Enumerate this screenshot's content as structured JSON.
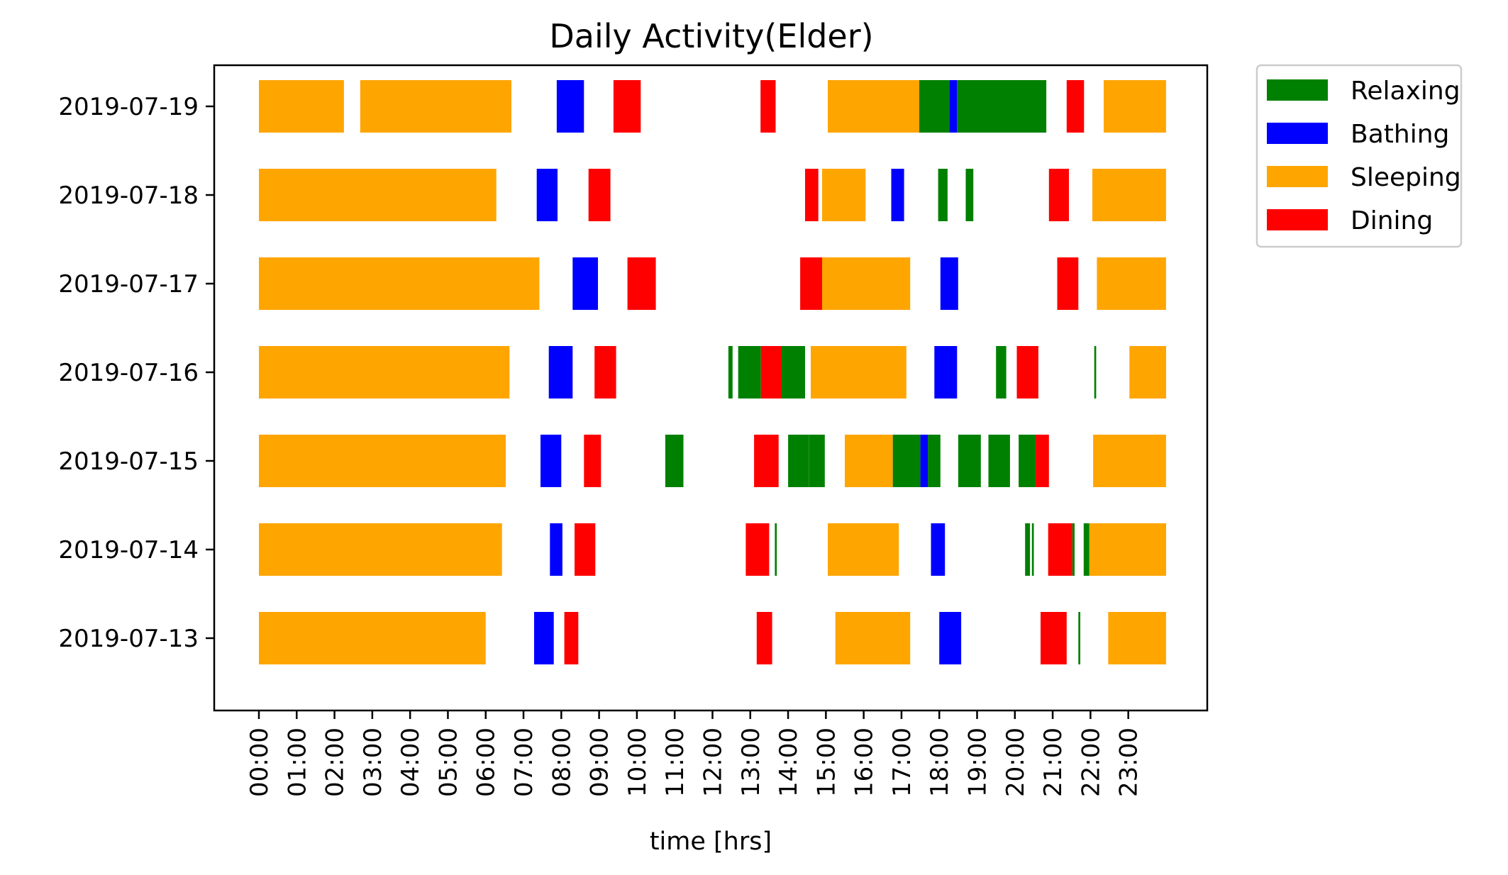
{
  "chart_data": {
    "type": "bar",
    "orientation": "horizontal-timeline",
    "title": "Daily Activity(Elder)",
    "xlabel": "time [hrs]",
    "ylabel": "",
    "xlim": [
      -1.2,
      25.0
    ],
    "x_ticks": [
      "00:00",
      "01:00",
      "02:00",
      "03:00",
      "04:00",
      "05:00",
      "06:00",
      "07:00",
      "08:00",
      "09:00",
      "10:00",
      "11:00",
      "12:00",
      "13:00",
      "14:00",
      "15:00",
      "16:00",
      "17:00",
      "18:00",
      "19:00",
      "20:00",
      "21:00",
      "22:00",
      "23:00"
    ],
    "categories": [
      "2019-07-19",
      "2019-07-18",
      "2019-07-17",
      "2019-07-16",
      "2019-07-15",
      "2019-07-14",
      "2019-07-13"
    ],
    "grid": false,
    "legend_position": "outside-top-right",
    "series": [
      {
        "name": "Relaxing",
        "color": "#008000"
      },
      {
        "name": "Bathing",
        "color": "#0000ff"
      },
      {
        "name": "Sleeping",
        "color": "#ffa500"
      },
      {
        "name": "Dining",
        "color": "#ff0000"
      }
    ],
    "rows": [
      {
        "date": "2019-07-19",
        "segments": [
          {
            "activity": "Sleeping",
            "start": 0.0,
            "end": 2.25
          },
          {
            "activity": "Sleeping",
            "start": 2.68,
            "end": 6.68
          },
          {
            "activity": "Bathing",
            "start": 7.88,
            "end": 8.6
          },
          {
            "activity": "Dining",
            "start": 9.38,
            "end": 10.1
          },
          {
            "activity": "Dining",
            "start": 13.27,
            "end": 13.67
          },
          {
            "activity": "Sleeping",
            "start": 15.05,
            "end": 17.47
          },
          {
            "activity": "Relaxing",
            "start": 17.47,
            "end": 18.27
          },
          {
            "activity": "Bathing",
            "start": 18.27,
            "end": 18.47
          },
          {
            "activity": "Relaxing",
            "start": 18.47,
            "end": 20.83
          },
          {
            "activity": "Dining",
            "start": 21.37,
            "end": 21.83
          },
          {
            "activity": "Sleeping",
            "start": 22.35,
            "end": 24.0
          }
        ]
      },
      {
        "date": "2019-07-18",
        "segments": [
          {
            "activity": "Sleeping",
            "start": 0.0,
            "end": 6.28
          },
          {
            "activity": "Bathing",
            "start": 7.35,
            "end": 7.9
          },
          {
            "activity": "Dining",
            "start": 8.72,
            "end": 9.3
          },
          {
            "activity": "Dining",
            "start": 14.45,
            "end": 14.8
          },
          {
            "activity": "Sleeping",
            "start": 14.9,
            "end": 16.05
          },
          {
            "activity": "Bathing",
            "start": 16.73,
            "end": 17.07
          },
          {
            "activity": "Relaxing",
            "start": 17.97,
            "end": 18.22
          },
          {
            "activity": "Relaxing",
            "start": 18.7,
            "end": 18.9
          },
          {
            "activity": "Dining",
            "start": 20.9,
            "end": 21.43
          },
          {
            "activity": "Sleeping",
            "start": 22.05,
            "end": 24.0
          }
        ]
      },
      {
        "date": "2019-07-17",
        "segments": [
          {
            "activity": "Sleeping",
            "start": 0.0,
            "end": 7.42
          },
          {
            "activity": "Bathing",
            "start": 8.3,
            "end": 8.97
          },
          {
            "activity": "Dining",
            "start": 9.75,
            "end": 10.5
          },
          {
            "activity": "Dining",
            "start": 14.32,
            "end": 14.9
          },
          {
            "activity": "Sleeping",
            "start": 14.9,
            "end": 17.23
          },
          {
            "activity": "Bathing",
            "start": 18.03,
            "end": 18.5
          },
          {
            "activity": "Dining",
            "start": 21.12,
            "end": 21.68
          },
          {
            "activity": "Sleeping",
            "start": 22.17,
            "end": 24.0
          }
        ]
      },
      {
        "date": "2019-07-16",
        "segments": [
          {
            "activity": "Sleeping",
            "start": 0.0,
            "end": 6.63
          },
          {
            "activity": "Bathing",
            "start": 7.67,
            "end": 8.3
          },
          {
            "activity": "Dining",
            "start": 8.88,
            "end": 9.45
          },
          {
            "activity": "Relaxing",
            "start": 12.42,
            "end": 12.53
          },
          {
            "activity": "Relaxing",
            "start": 12.68,
            "end": 13.28
          },
          {
            "activity": "Dining",
            "start": 13.28,
            "end": 13.83
          },
          {
            "activity": "Relaxing",
            "start": 13.83,
            "end": 14.45
          },
          {
            "activity": "Sleeping",
            "start": 14.6,
            "end": 17.13
          },
          {
            "activity": "Bathing",
            "start": 17.87,
            "end": 18.47
          },
          {
            "activity": "Relaxing",
            "start": 19.5,
            "end": 19.77
          },
          {
            "activity": "Dining",
            "start": 20.05,
            "end": 20.62
          },
          {
            "activity": "Relaxing",
            "start": 22.1,
            "end": 22.15
          },
          {
            "activity": "Sleeping",
            "start": 23.03,
            "end": 24.0
          }
        ]
      },
      {
        "date": "2019-07-15",
        "segments": [
          {
            "activity": "Sleeping",
            "start": 0.0,
            "end": 6.53
          },
          {
            "activity": "Bathing",
            "start": 7.45,
            "end": 8.0
          },
          {
            "activity": "Dining",
            "start": 8.6,
            "end": 9.05
          },
          {
            "activity": "Relaxing",
            "start": 10.75,
            "end": 11.23
          },
          {
            "activity": "Dining",
            "start": 13.1,
            "end": 13.75
          },
          {
            "activity": "Relaxing",
            "start": 14.0,
            "end": 14.3
          },
          {
            "activity": "Relaxing",
            "start": 14.3,
            "end": 14.55
          },
          {
            "activity": "Relaxing",
            "start": 14.55,
            "end": 14.97
          },
          {
            "activity": "Sleeping",
            "start": 15.5,
            "end": 16.77
          },
          {
            "activity": "Relaxing",
            "start": 16.77,
            "end": 17.5
          },
          {
            "activity": "Bathing",
            "start": 17.5,
            "end": 17.7
          },
          {
            "activity": "Relaxing",
            "start": 17.7,
            "end": 18.03
          },
          {
            "activity": "Relaxing",
            "start": 18.5,
            "end": 18.55
          },
          {
            "activity": "Relaxing",
            "start": 18.55,
            "end": 19.1
          },
          {
            "activity": "Relaxing",
            "start": 19.3,
            "end": 19.87
          },
          {
            "activity": "Relaxing",
            "start": 20.1,
            "end": 20.55
          },
          {
            "activity": "Dining",
            "start": 20.55,
            "end": 20.9
          },
          {
            "activity": "Sleeping",
            "start": 22.07,
            "end": 24.0
          }
        ]
      },
      {
        "date": "2019-07-14",
        "segments": [
          {
            "activity": "Sleeping",
            "start": 0.0,
            "end": 6.43
          },
          {
            "activity": "Bathing",
            "start": 7.7,
            "end": 8.03
          },
          {
            "activity": "Dining",
            "start": 8.35,
            "end": 8.9
          },
          {
            "activity": "Dining",
            "start": 12.88,
            "end": 13.5
          },
          {
            "activity": "Relaxing",
            "start": 13.65,
            "end": 13.7
          },
          {
            "activity": "Sleeping",
            "start": 15.05,
            "end": 16.93
          },
          {
            "activity": "Bathing",
            "start": 17.78,
            "end": 18.15
          },
          {
            "activity": "Relaxing",
            "start": 20.27,
            "end": 20.4
          },
          {
            "activity": "Relaxing",
            "start": 20.45,
            "end": 20.5
          },
          {
            "activity": "Dining",
            "start": 20.88,
            "end": 21.52
          },
          {
            "activity": "Relaxing",
            "start": 21.52,
            "end": 21.58
          },
          {
            "activity": "Relaxing",
            "start": 21.82,
            "end": 21.97
          },
          {
            "activity": "Sleeping",
            "start": 21.97,
            "end": 24.0
          }
        ]
      },
      {
        "date": "2019-07-13",
        "segments": [
          {
            "activity": "Sleeping",
            "start": 0.0,
            "end": 6.0
          },
          {
            "activity": "Bathing",
            "start": 7.28,
            "end": 7.8
          },
          {
            "activity": "Dining",
            "start": 8.08,
            "end": 8.45
          },
          {
            "activity": "Dining",
            "start": 13.17,
            "end": 13.58
          },
          {
            "activity": "Sleeping",
            "start": 15.25,
            "end": 17.23
          },
          {
            "activity": "Bathing",
            "start": 18.0,
            "end": 18.58
          },
          {
            "activity": "Dining",
            "start": 20.68,
            "end": 21.37
          },
          {
            "activity": "Relaxing",
            "start": 21.68,
            "end": 21.73
          },
          {
            "activity": "Sleeping",
            "start": 22.47,
            "end": 24.0
          }
        ]
      }
    ]
  }
}
